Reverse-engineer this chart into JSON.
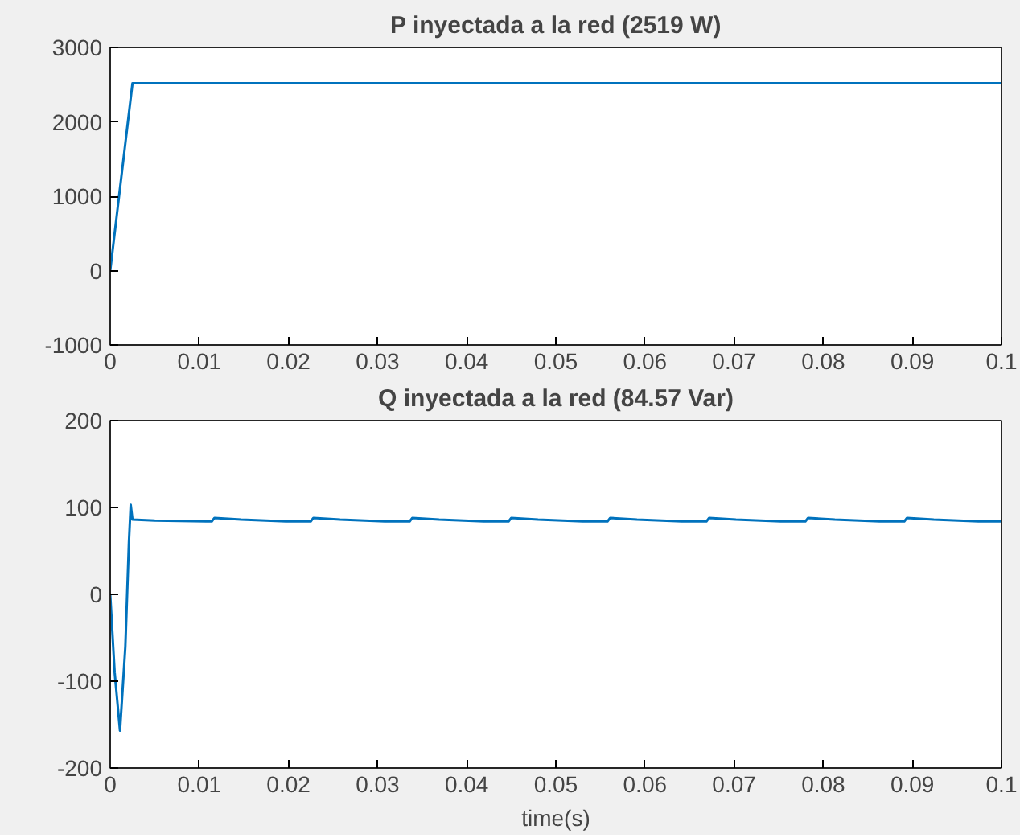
{
  "chart_data": [
    {
      "type": "line",
      "title": "P inyectada a la red (2519 W)",
      "x": [
        0,
        0.0025,
        0.1
      ],
      "series": [
        {
          "color": "#0072bd",
          "values": [
            0,
            2519,
            2519
          ]
        }
      ],
      "xlim": [
        0,
        0.1
      ],
      "xticks": [
        0,
        0.01,
        0.02,
        0.03,
        0.04,
        0.05,
        0.06,
        0.07,
        0.08,
        0.09,
        0.1
      ],
      "ylim": [
        -1000,
        3000
      ],
      "yticks": [
        -1000,
        0,
        1000,
        2000,
        3000
      ]
    },
    {
      "type": "line",
      "title": "Q inyectada a la red (84.57 Var)",
      "xlabel": "time(s)",
      "x": [
        0,
        0.0005,
        0.0011,
        0.0017,
        0.0021,
        0.0023,
        0.0025,
        0.005,
        0.0114,
        0.0117,
        0.0147,
        0.0197,
        0.0225,
        0.0228,
        0.0258,
        0.0308,
        0.0336,
        0.0339,
        0.0369,
        0.0419,
        0.0447,
        0.045,
        0.048,
        0.053,
        0.0558,
        0.0561,
        0.0591,
        0.0641,
        0.0669,
        0.0672,
        0.0702,
        0.0752,
        0.078,
        0.0783,
        0.0813,
        0.0863,
        0.0891,
        0.0894,
        0.0924,
        0.0974,
        0.1
      ],
      "series": [
        {
          "color": "#0072bd",
          "values": [
            0,
            -90,
            -157,
            -60,
            60,
            103,
            86,
            85,
            84,
            88,
            86,
            84,
            84,
            88,
            86,
            84,
            84,
            88,
            86,
            84,
            84,
            88,
            86,
            84,
            84,
            88,
            86,
            84,
            84,
            88,
            86,
            84,
            84,
            88,
            86,
            84,
            84,
            88,
            86,
            84,
            84
          ]
        }
      ],
      "xlim": [
        0,
        0.1
      ],
      "xticks": [
        0,
        0.01,
        0.02,
        0.03,
        0.04,
        0.05,
        0.06,
        0.07,
        0.08,
        0.09,
        0.1
      ],
      "ylim": [
        -200,
        200
      ],
      "yticks": [
        -200,
        -100,
        0,
        100,
        200
      ]
    }
  ]
}
